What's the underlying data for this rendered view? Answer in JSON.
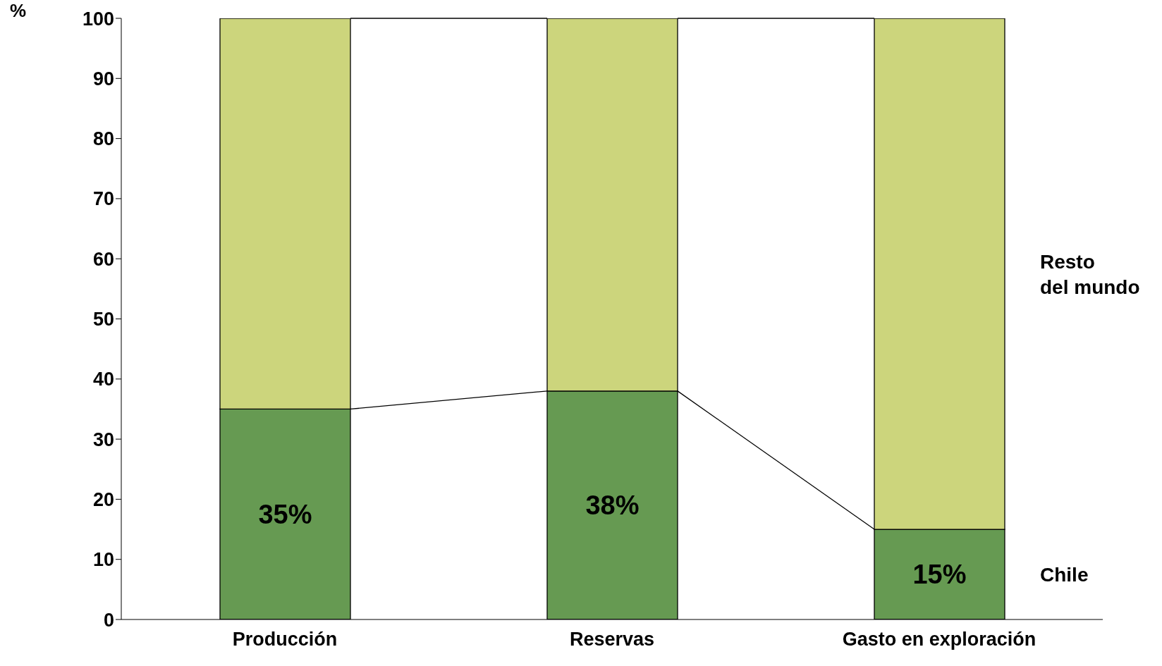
{
  "chart_data": {
    "type": "bar",
    "stacked": true,
    "ylabel": "%",
    "categories": [
      "Producción",
      "Reservas",
      "Gasto en exploración"
    ],
    "series": [
      {
        "name": "Chile",
        "color": "#669a52",
        "values": [
          35,
          38,
          15
        ],
        "value_labels": [
          "35%",
          "38%",
          "15%"
        ]
      },
      {
        "name": "Resto del mundo",
        "color": "#ccd57c",
        "values": [
          65,
          62,
          85
        ]
      }
    ],
    "ylim": [
      0,
      100
    ],
    "yticks": [
      0,
      10,
      20,
      30,
      40,
      50,
      60,
      70,
      80,
      90,
      100
    ],
    "grid": false,
    "legend": false
  }
}
